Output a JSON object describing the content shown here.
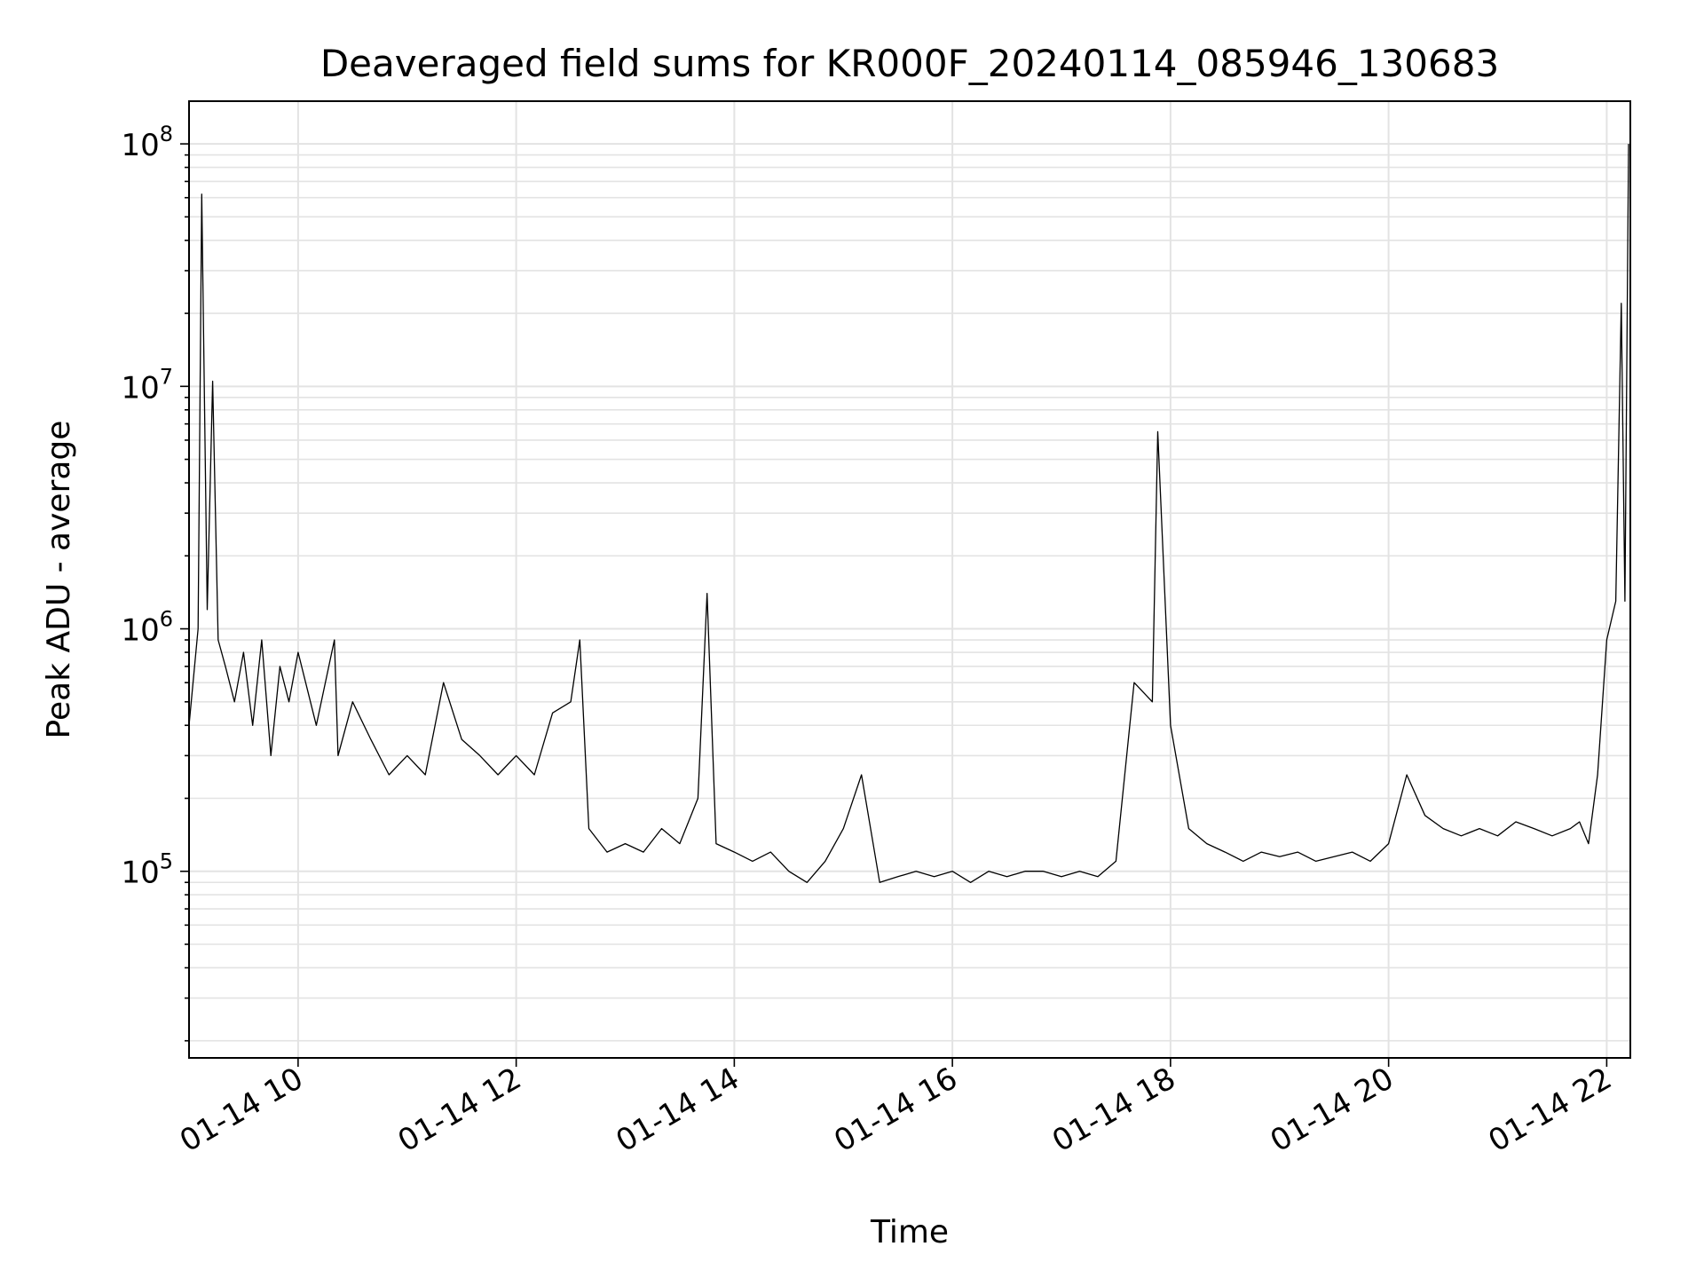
{
  "chart_data": {
    "type": "line",
    "title": "Deaveraged field sums for KR000F_20240114_085946_130683",
    "xlabel": "Time",
    "ylabel": "Peak ADU - average",
    "x_scale": "time",
    "y_scale": "log",
    "xlim": [
      "2024-01-14 09:00",
      "2024-01-14 22:13"
    ],
    "ylim": [
      17000,
      150000000
    ],
    "grid": true,
    "line_color": "#000000",
    "x_ticks": [
      {
        "value": "2024-01-14 10:00",
        "label": "01-14 10"
      },
      {
        "value": "2024-01-14 12:00",
        "label": "01-14 12"
      },
      {
        "value": "2024-01-14 14:00",
        "label": "01-14 14"
      },
      {
        "value": "2024-01-14 16:00",
        "label": "01-14 16"
      },
      {
        "value": "2024-01-14 18:00",
        "label": "01-14 18"
      },
      {
        "value": "2024-01-14 20:00",
        "label": "01-14 20"
      },
      {
        "value": "2024-01-14 22:00",
        "label": "01-14 22"
      }
    ],
    "y_ticks": [
      {
        "value": 100000,
        "base": "10",
        "exp": "5"
      },
      {
        "value": 1000000,
        "base": "10",
        "exp": "6"
      },
      {
        "value": 10000000,
        "base": "10",
        "exp": "7"
      },
      {
        "value": 100000000,
        "base": "10",
        "exp": "8"
      }
    ],
    "series": [
      {
        "x": [
          "2024-01-14 09:00",
          "2024-01-14 09:05",
          "2024-01-14 09:07",
          "2024-01-14 09:10",
          "2024-01-14 09:13",
          "2024-01-14 09:16",
          "2024-01-14 09:20",
          "2024-01-14 09:25",
          "2024-01-14 09:30",
          "2024-01-14 09:35",
          "2024-01-14 09:40",
          "2024-01-14 09:45",
          "2024-01-14 09:50",
          "2024-01-14 09:55",
          "2024-01-14 10:00",
          "2024-01-14 10:10",
          "2024-01-14 10:20",
          "2024-01-14 10:22",
          "2024-01-14 10:30",
          "2024-01-14 10:40",
          "2024-01-14 10:50",
          "2024-01-14 11:00",
          "2024-01-14 11:10",
          "2024-01-14 11:20",
          "2024-01-14 11:30",
          "2024-01-14 11:40",
          "2024-01-14 11:50",
          "2024-01-14 12:00",
          "2024-01-14 12:10",
          "2024-01-14 12:20",
          "2024-01-14 12:30",
          "2024-01-14 12:35",
          "2024-01-14 12:40",
          "2024-01-14 12:50",
          "2024-01-14 13:00",
          "2024-01-14 13:10",
          "2024-01-14 13:20",
          "2024-01-14 13:30",
          "2024-01-14 13:40",
          "2024-01-14 13:45",
          "2024-01-14 13:50",
          "2024-01-14 14:00",
          "2024-01-14 14:10",
          "2024-01-14 14:20",
          "2024-01-14 14:30",
          "2024-01-14 14:40",
          "2024-01-14 14:50",
          "2024-01-14 15:00",
          "2024-01-14 15:10",
          "2024-01-14 15:20",
          "2024-01-14 15:30",
          "2024-01-14 15:40",
          "2024-01-14 15:50",
          "2024-01-14 16:00",
          "2024-01-14 16:10",
          "2024-01-14 16:20",
          "2024-01-14 16:30",
          "2024-01-14 16:40",
          "2024-01-14 16:50",
          "2024-01-14 17:00",
          "2024-01-14 17:10",
          "2024-01-14 17:20",
          "2024-01-14 17:30",
          "2024-01-14 17:40",
          "2024-01-14 17:50",
          "2024-01-14 17:53",
          "2024-01-14 18:00",
          "2024-01-14 18:10",
          "2024-01-14 18:20",
          "2024-01-14 18:30",
          "2024-01-14 18:40",
          "2024-01-14 18:50",
          "2024-01-14 19:00",
          "2024-01-14 19:10",
          "2024-01-14 19:20",
          "2024-01-14 19:30",
          "2024-01-14 19:40",
          "2024-01-14 19:50",
          "2024-01-14 20:00",
          "2024-01-14 20:10",
          "2024-01-14 20:20",
          "2024-01-14 20:30",
          "2024-01-14 20:40",
          "2024-01-14 20:50",
          "2024-01-14 21:00",
          "2024-01-14 21:10",
          "2024-01-14 21:20",
          "2024-01-14 21:30",
          "2024-01-14 21:40",
          "2024-01-14 21:45",
          "2024-01-14 21:50",
          "2024-01-14 21:55",
          "2024-01-14 22:00",
          "2024-01-14 22:05",
          "2024-01-14 22:08",
          "2024-01-14 22:10",
          "2024-01-14 22:12"
        ],
        "y": [
          400000,
          1000000,
          62000000,
          1200000,
          10500000,
          900000,
          700000,
          500000,
          800000,
          400000,
          900000,
          300000,
          700000,
          500000,
          800000,
          400000,
          900000,
          300000,
          500000,
          350000,
          250000,
          300000,
          250000,
          600000,
          350000,
          300000,
          250000,
          300000,
          250000,
          450000,
          500000,
          900000,
          150000,
          120000,
          130000,
          120000,
          150000,
          130000,
          200000,
          1400000,
          130000,
          120000,
          110000,
          120000,
          100000,
          90000,
          110000,
          150000,
          250000,
          90000,
          95000,
          100000,
          95000,
          100000,
          90000,
          100000,
          95000,
          100000,
          100000,
          95000,
          100000,
          95000,
          110000,
          600000,
          500000,
          6500000,
          400000,
          150000,
          130000,
          120000,
          110000,
          120000,
          115000,
          120000,
          110000,
          115000,
          120000,
          110000,
          130000,
          250000,
          170000,
          150000,
          140000,
          150000,
          140000,
          160000,
          150000,
          140000,
          150000,
          160000,
          130000,
          250000,
          900000,
          1300000,
          22000000,
          1300000,
          100000000
        ]
      }
    ]
  }
}
